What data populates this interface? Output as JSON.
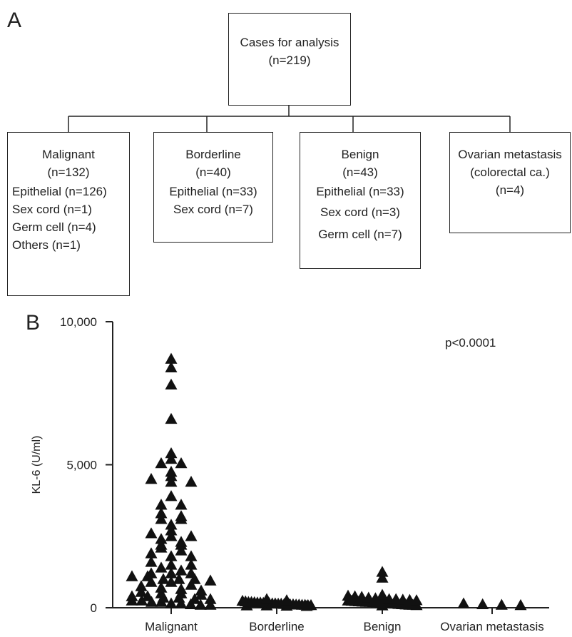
{
  "panels": {
    "a": "A",
    "b": "B"
  },
  "flowchart": {
    "root": {
      "title": "Cases for analysis",
      "count": "(n=219)"
    },
    "groups": [
      {
        "title": "Malignant",
        "count": "(n=132)",
        "lines": [
          "Epithelial (n=126)",
          "Sex cord (n=1)",
          "Germ cell (n=4)",
          "Others (n=1)"
        ]
      },
      {
        "title": "Borderline",
        "count": "(n=40)",
        "lines": [
          "Epithelial (n=33)",
          "Sex cord (n=7)"
        ]
      },
      {
        "title": "Benign",
        "count": "(n=43)",
        "lines": [
          "Epithelial (n=33)",
          "Sex cord (n=3)",
          "Germ cell (n=7)"
        ]
      },
      {
        "title": "Ovarian metastasis",
        "subtitle": "(colorectal ca.)",
        "count": "(n=4)",
        "lines": []
      }
    ]
  },
  "chart_data": {
    "type": "scatter",
    "marker": "triangle",
    "ylabel": "KL-6 (U/ml)",
    "ylim": [
      0,
      10000
    ],
    "yticks": [
      "0",
      "5,000",
      "10,000"
    ],
    "yticks_values": [
      0,
      5000,
      10000
    ],
    "categories": [
      "Malignant",
      "Borderline",
      "Benign",
      "Ovarian metastasis"
    ],
    "annotation": "p<0.0001",
    "points": {
      "Malignant": [
        8700,
        8400,
        7800,
        6600,
        5400,
        5200,
        5050,
        5050,
        4750,
        4600,
        4500,
        4400,
        4400,
        3900,
        3600,
        3600,
        3300,
        3200,
        3100,
        3100,
        2900,
        2700,
        2600,
        2500,
        2500,
        2400,
        2300,
        2200,
        2200,
        2100,
        2000,
        1900,
        1800,
        1800,
        1600,
        1500,
        1500,
        1400,
        1300,
        1200,
        1200,
        1200,
        1100,
        1100,
        1000,
        1000,
        1000,
        950,
        900,
        900,
        800,
        750,
        700,
        650,
        600,
        550,
        500,
        500,
        450,
        400,
        400,
        350,
        350,
        300,
        300,
        250,
        250,
        200,
        200,
        150,
        150,
        120,
        100,
        100
      ],
      "Borderline": [
        300,
        260,
        240,
        220,
        200,
        200,
        190,
        180,
        180,
        170,
        160,
        160,
        150,
        150,
        140,
        140,
        130,
        130,
        120,
        120,
        110,
        110,
        100,
        100,
        90,
        90,
        80,
        80,
        70,
        60
      ],
      "Benign": [
        1250,
        1050,
        450,
        420,
        400,
        380,
        350,
        330,
        320,
        300,
        300,
        280,
        270,
        260,
        250,
        240,
        230,
        220,
        210,
        200,
        200,
        190,
        180,
        170,
        160,
        150,
        150,
        140,
        130,
        120,
        110,
        100,
        100,
        90,
        80
      ],
      "Ovarian metastasis": [
        150,
        120,
        100,
        90
      ]
    }
  }
}
